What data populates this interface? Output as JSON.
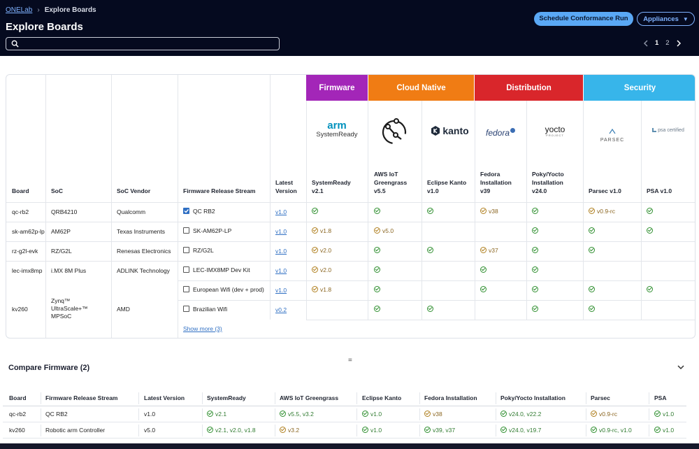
{
  "header": {
    "breadcrumb_home": "ONELab",
    "breadcrumb_current": "Explore Boards",
    "title": "Explore Boards",
    "search_placeholder": "",
    "schedule_button": "Schedule Conformance Run",
    "appliances_button": "Appliances",
    "pager": {
      "page1": "1",
      "page2": "2"
    }
  },
  "categories": {
    "firmware": {
      "label": "Firmware",
      "color": "#a326b8"
    },
    "cloud": {
      "label": "Cloud Native",
      "color": "#f07c14"
    },
    "distribution": {
      "label": "Distribution",
      "color": "#d9262b"
    },
    "security": {
      "label": "Security",
      "color": "#37b5ea"
    }
  },
  "logos": {
    "arm": "arm",
    "systemready": "SystemReady",
    "kanto": "kanto",
    "fedora": "fedora",
    "yocto": "yocto",
    "yocto_sub": "PROJECT",
    "parsec": "PARSEC",
    "psa": "psa certified"
  },
  "columns": {
    "board": "Board",
    "soc": "SoC",
    "vendor": "SoC Vendor",
    "stream": "Firmware Release Stream",
    "latest_1": "Latest",
    "latest_2": "Version",
    "systemready_1": "SystemReady",
    "systemready_2": "v2.1",
    "aws_1": "AWS IoT",
    "aws_2": "Greengrass",
    "aws_3": "v5.5",
    "kanto_1": "Eclipse Kanto",
    "kanto_2": "v1.0",
    "fedora_1": "Fedora",
    "fedora_2": "Installation",
    "fedora_3": "v39",
    "yocto_1": "Poky/Yocto",
    "yocto_2": "Installation",
    "yocto_3": "v24.0",
    "parsec": "Parsec v1.0",
    "psa": "PSA v1.0"
  },
  "boards": [
    {
      "board": "qc-rb2",
      "soc": "QRB4210",
      "vendor": "Qualcomm",
      "stream": "QC RB2",
      "checked": true,
      "latest": "v1.0"
    },
    {
      "board": "sk-am62p-lp",
      "soc": "AM62P",
      "vendor": "Texas Instruments",
      "stream": "SK-AM62P-LP",
      "checked": false,
      "latest": "v1.0"
    },
    {
      "board": "rz-g2l-evk",
      "soc": "RZ/G2L",
      "vendor": "Renesas Electronics",
      "stream": "RZ/G2L",
      "checked": false,
      "latest": "v1.0"
    },
    {
      "board": "lec-imx8mp",
      "soc": "i.MX 8M Plus",
      "vendor": "ADLINK Technology",
      "stream": "LEC-IMX8MP Dev Kit",
      "checked": false,
      "latest": "v1.0"
    },
    {
      "board": "kv260",
      "soc_1": "Zynq™",
      "soc_2": "UltraScale+™",
      "soc_3": "MPSoC",
      "vendor": "AMD",
      "stream": "European Wifi (dev + prod)",
      "checked": false,
      "latest": "v1.0"
    },
    {
      "stream": "Brazilian Wifi",
      "checked": false,
      "latest": "v0.2"
    }
  ],
  "status": {
    "r0": {
      "sr": "",
      "fedora": "v38",
      "parsec": "v0.9-rc"
    },
    "r1": {
      "sr": "v1.8",
      "aws": "v5.0"
    },
    "r2": {
      "sr": "v2.0",
      "fedora": "v37"
    },
    "r3": {
      "sr": "v2.0"
    },
    "r4": {
      "sr": "v1.8"
    }
  },
  "show_more": "Show more (3)",
  "divider": "=",
  "compare": {
    "title": "Compare Firmware (2)",
    "headers": [
      "Board",
      "Firmware Release Stream",
      "Latest Version",
      "SystemReady",
      "AWS IoT Greengrass",
      "Eclipse Kanto",
      "Fedora Installation",
      "Poky/Yocto Installation",
      "Parsec",
      "PSA"
    ],
    "rows": [
      [
        "qc-rb2",
        "QC RB2",
        "v1.0",
        "v2.1",
        "v5.5, v3.2",
        "v1.0",
        "v38",
        "v24.0, v22.2",
        "v0.9-rc",
        "v1.0"
      ],
      [
        "kv260",
        "Robotic arm Controller",
        "v5.0",
        "v2.1, v2.0, v1.8",
        "v3.2",
        "v1.0",
        "v39, v37",
        "v24.0, v19.7",
        "v0.9-rc, v1.0",
        "v1.0"
      ]
    ]
  }
}
